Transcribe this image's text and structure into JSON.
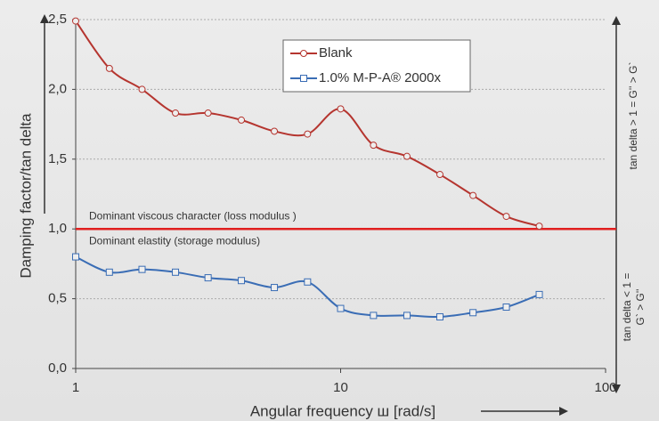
{
  "chart_data": {
    "type": "line",
    "ylabel": "Damping factor/tan delta",
    "xlabel": "Angular frequency ш [rad/s]",
    "xlog": true,
    "xlim": [
      1,
      100
    ],
    "xticks": [
      1,
      10,
      100
    ],
    "ylim": [
      0,
      2.5
    ],
    "yticks": [
      {
        "value": 0,
        "label": "0,0"
      },
      {
        "value": 0.5,
        "label": "0,5"
      },
      {
        "value": 1,
        "label": "1,0"
      },
      {
        "value": 1.5,
        "label": "1,5"
      },
      {
        "value": 2,
        "label": "2,0"
      },
      {
        "value": 2.5,
        "label": "2,5"
      }
    ],
    "grid": true,
    "legend": "upper center",
    "x": [
      1,
      1.34,
      1.78,
      2.38,
      3.16,
      4.22,
      5.62,
      7.5,
      10,
      13.3,
      17.8,
      23.7,
      31.6,
      42.2,
      56.2
    ],
    "series": [
      {
        "name": "Blank",
        "color": "#b5352f",
        "marker": "circle",
        "values": [
          2.49,
          2.15,
          2.0,
          1.83,
          1.83,
          1.78,
          1.7,
          1.68,
          1.86,
          1.6,
          1.52,
          1.39,
          1.24,
          1.09,
          1.02
        ]
      },
      {
        "name": "1.0% M-P-A® 2000x",
        "color": "#3a6db5",
        "marker": "square",
        "values": [
          0.8,
          0.69,
          0.71,
          0.69,
          0.65,
          0.63,
          0.58,
          0.62,
          0.43,
          0.38,
          0.38,
          0.37,
          0.4,
          0.44,
          0.53
        ]
      }
    ],
    "reference_line": {
      "value": 1,
      "color": "#e02020"
    },
    "annotations": [
      "Dominant viscous character (loss modulus )",
      "Dominant elastity (storage modulus)"
    ],
    "right_labels": [
      "tan delta  > 1 = G'' > G`",
      "tan delta < 1 =",
      "G` > G''"
    ]
  }
}
